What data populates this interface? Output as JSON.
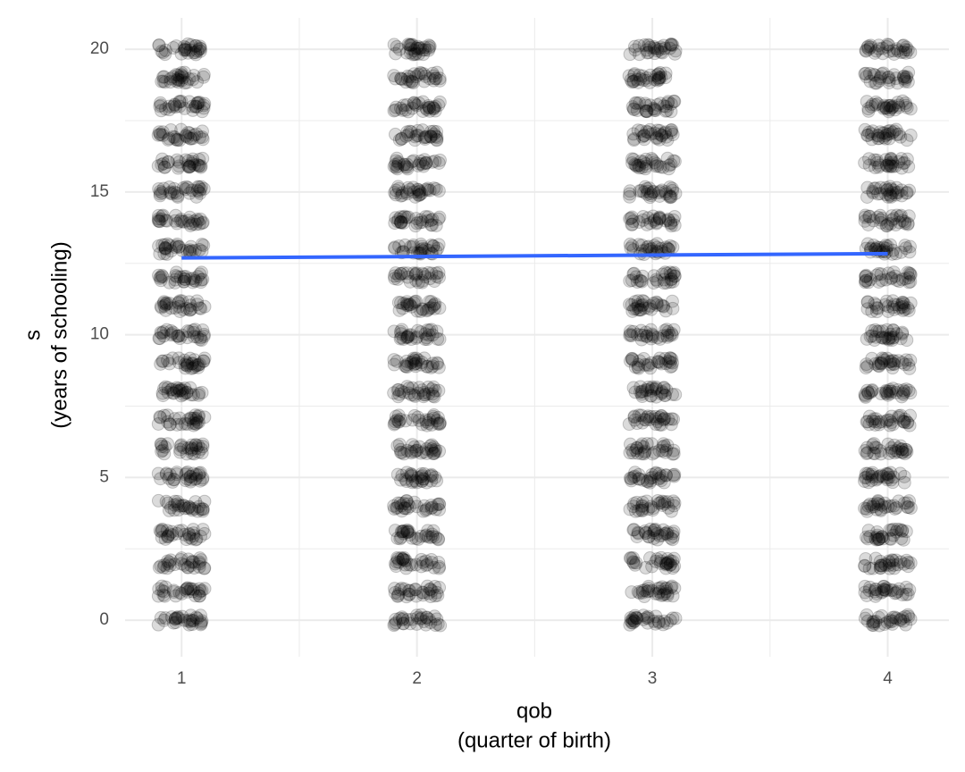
{
  "chart_data": {
    "type": "scatter",
    "x_label": [
      "qob",
      "(quarter of birth)"
    ],
    "y_label": [
      "s",
      "(years of schooling)"
    ],
    "xlim": [
      0.76,
      4.26
    ],
    "ylim": [
      -1.28,
      21.1
    ],
    "xticks": [
      1,
      2,
      3,
      4
    ],
    "yticks": [
      0,
      5,
      10,
      15,
      20
    ],
    "grid": true,
    "minor_grid": true,
    "series": [
      {
        "type": "scatter",
        "color": "#000000",
        "x": [
          1,
          1,
          1,
          1,
          1,
          1,
          1,
          1,
          1,
          1,
          1,
          1,
          1,
          1,
          1,
          1,
          1,
          1,
          1,
          1,
          1,
          2,
          2,
          2,
          2,
          2,
          2,
          2,
          2,
          2,
          2,
          2,
          2,
          2,
          2,
          2,
          2,
          2,
          2,
          2,
          2,
          2,
          3,
          3,
          3,
          3,
          3,
          3,
          3,
          3,
          3,
          3,
          3,
          3,
          3,
          3,
          3,
          3,
          3,
          3,
          3,
          3,
          3,
          4,
          4,
          4,
          4,
          4,
          4,
          4,
          4,
          4,
          4,
          4,
          4,
          4,
          4,
          4,
          4,
          4,
          4,
          4,
          4,
          4
        ],
        "values": [
          0,
          1,
          2,
          3,
          4,
          5,
          6,
          7,
          8,
          9,
          10,
          11,
          12,
          13,
          14,
          15,
          16,
          17,
          18,
          19,
          20,
          0,
          1,
          2,
          3,
          4,
          5,
          6,
          7,
          8,
          9,
          10,
          11,
          12,
          13,
          14,
          15,
          16,
          17,
          18,
          19,
          20,
          0,
          1,
          2,
          3,
          4,
          5,
          6,
          7,
          8,
          9,
          10,
          11,
          12,
          13,
          14,
          15,
          16,
          17,
          18,
          19,
          20,
          0,
          1,
          2,
          3,
          4,
          5,
          6,
          7,
          8,
          9,
          10,
          11,
          12,
          13,
          14,
          15,
          16,
          17,
          18,
          19,
          20
        ]
      },
      {
        "type": "line",
        "color": "#3366FF",
        "x": [
          1,
          4
        ],
        "values": [
          12.69,
          12.84
        ]
      }
    ]
  }
}
